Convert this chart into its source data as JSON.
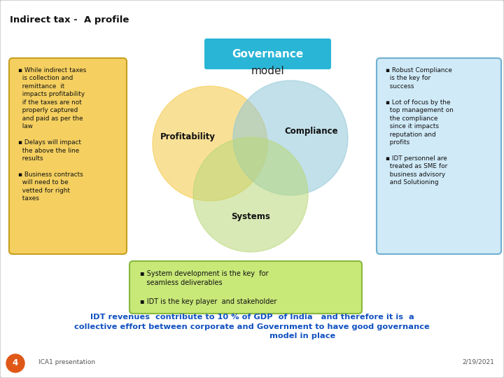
{
  "title": "Indirect tax -  A profile",
  "bg_color": "#ffffff",
  "border_color": "#cccccc",
  "governance_box_color": "#29b5d6",
  "circle_profitability_color": "#f5c842",
  "circle_compliance_color": "#90c8d8",
  "circle_systems_color": "#b8d878",
  "circle_labels": [
    "Profitability",
    "Compliance",
    "Systems"
  ],
  "left_box_color": "#f5d060",
  "left_box_border": "#c8a020",
  "right_box_color": "#d0eaf8",
  "right_box_border": "#70b0d0",
  "bottom_box_color": "#c8e878",
  "bottom_box_border": "#88b840",
  "footer_color": "#1050c0",
  "footer_left": "ICA1 presentation",
  "footer_right": "2/19/2021",
  "footer_num": "4",
  "footer_num_bg": "#e05818"
}
